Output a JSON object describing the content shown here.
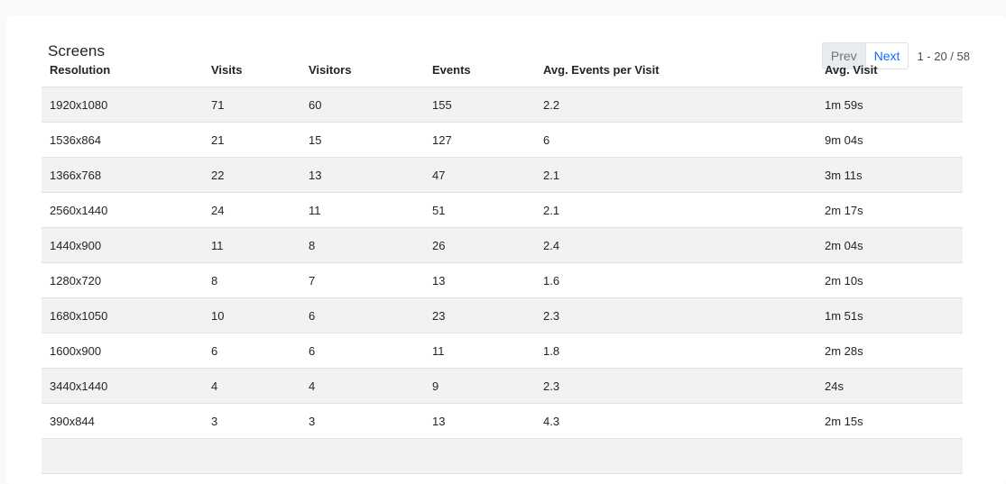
{
  "card": {
    "title": "Screens",
    "pager": {
      "prev_label": "Prev",
      "next_label": "Next",
      "range_text": "1 - 20 / 58"
    }
  },
  "table": {
    "columns": [
      "Resolution",
      "Visits",
      "Visitors",
      "Events",
      "Avg. Events per Visit",
      "Avg. Visit"
    ],
    "rows": [
      [
        "1920x1080",
        "71",
        "60",
        "155",
        "2.2",
        "1m 59s"
      ],
      [
        "1536x864",
        "21",
        "15",
        "127",
        "6",
        "9m 04s"
      ],
      [
        "1366x768",
        "22",
        "13",
        "47",
        "2.1",
        "3m 11s"
      ],
      [
        "2560x1440",
        "24",
        "11",
        "51",
        "2.1",
        "2m 17s"
      ],
      [
        "1440x900",
        "11",
        "8",
        "26",
        "2.4",
        "2m 04s"
      ],
      [
        "1280x720",
        "8",
        "7",
        "13",
        "1.6",
        "2m 10s"
      ],
      [
        "1680x1050",
        "10",
        "6",
        "23",
        "2.3",
        "1m 51s"
      ],
      [
        "1600x900",
        "6",
        "6",
        "11",
        "1.8",
        "2m 28s"
      ],
      [
        "3440x1440",
        "4",
        "4",
        "9",
        "2.3",
        "24s"
      ],
      [
        "390x844",
        "3",
        "3",
        "13",
        "4.3",
        "2m 15s"
      ],
      [
        "",
        "",
        "",
        "",
        "",
        ""
      ]
    ]
  },
  "colors": {
    "stripe": "#f2f2f2",
    "link": "#0d6efd",
    "border": "#dee2e6"
  }
}
